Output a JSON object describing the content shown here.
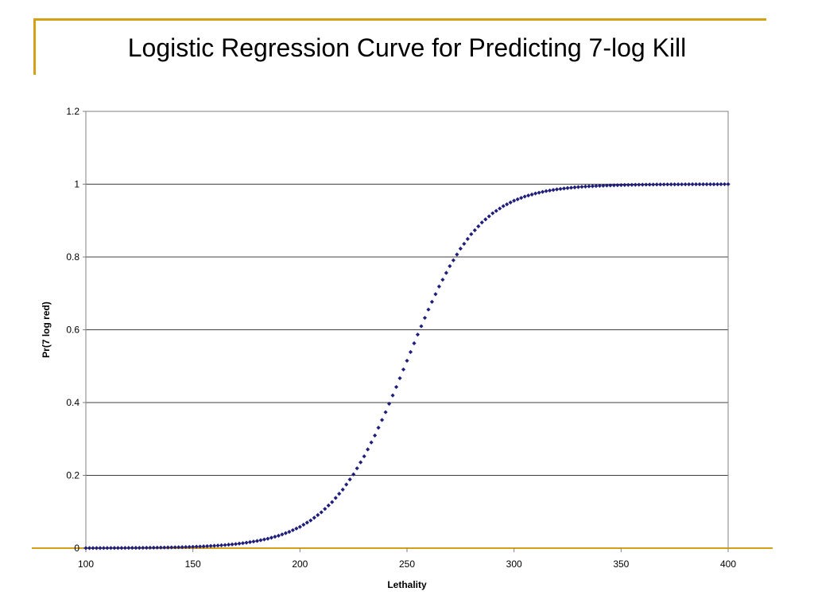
{
  "slide": {
    "title": "Logistic Regression Curve for Predicting 7-log Kill",
    "accent_color": "#d4a017"
  },
  "chart_data": {
    "type": "scatter",
    "title": "",
    "xlabel": "Lethality",
    "ylabel": "Pr(7 log red)",
    "xlim": [
      100,
      400
    ],
    "ylim": [
      0,
      1.2
    ],
    "x_ticks": [
      "100",
      "150",
      "200",
      "250",
      "300",
      "350",
      "400"
    ],
    "y_ticks": [
      "0",
      "0.2",
      "0.4",
      "0.6",
      "0.8",
      "1",
      "1.2"
    ],
    "grid": "horizontal",
    "legend": "none",
    "marker_color": "#1f1f7a",
    "series": [
      {
        "marker": "diamond",
        "x": [
          100,
          105,
          110,
          115,
          120,
          125,
          130,
          135,
          140,
          145,
          150,
          155,
          160,
          165,
          170,
          175,
          180,
          185,
          190,
          195,
          200,
          205,
          210,
          215,
          220,
          225,
          230,
          235,
          240,
          245,
          250,
          255,
          260,
          265,
          270,
          275,
          280,
          285,
          290,
          295,
          300,
          305,
          310,
          315,
          320,
          325,
          330,
          335,
          340,
          345,
          350,
          355,
          360,
          365,
          370,
          375,
          380,
          385,
          390,
          395,
          400
        ],
        "y": [
          0.0002,
          0.0003,
          0.0004,
          0.0005,
          0.0007,
          0.0009,
          0.0012,
          0.0016,
          0.0021,
          0.0028,
          0.0037,
          0.0049,
          0.0065,
          0.0086,
          0.0113,
          0.015,
          0.0198,
          0.026,
          0.0341,
          0.0448,
          0.0585,
          0.0761,
          0.0985,
          0.1265,
          0.161,
          0.2028,
          0.2523,
          0.3095,
          0.3736,
          0.4428,
          0.5149,
          0.5868,
          0.6556,
          0.7189,
          0.7749,
          0.8229,
          0.8627,
          0.8948,
          0.9201,
          0.9397,
          0.9547,
          0.966,
          0.9745,
          0.981,
          0.9858,
          0.9894,
          0.9921,
          0.9941,
          0.9956,
          0.9967,
          0.9976,
          0.9982,
          0.9987,
          0.999,
          0.9993,
          0.9995,
          0.9996,
          0.9997,
          0.9998,
          0.9998,
          0.9999
        ]
      }
    ]
  }
}
